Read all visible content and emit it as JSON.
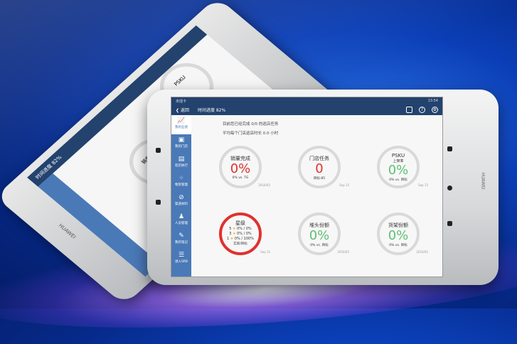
{
  "status_bar": {
    "carrier": "未插卡",
    "time": "13:54"
  },
  "header": {
    "back_label": "返回",
    "progress_label": "时间进度 82%"
  },
  "sidebar": {
    "items": [
      {
        "label": "我的业绩",
        "icon": "chart-icon",
        "active": true
      },
      {
        "label": "我的门店",
        "icon": "store-icon"
      },
      {
        "label": "巡店执行",
        "icon": "clipboard-icon"
      },
      {
        "label": "物资管理",
        "icon": "grid-icon"
      },
      {
        "label": "渠道材料",
        "icon": "clip-icon"
      },
      {
        "label": "人员管理",
        "icon": "people-icon"
      },
      {
        "label": "我的笔记",
        "icon": "note-icon"
      },
      {
        "label": "进入SRB",
        "icon": "enter-icon"
      }
    ]
  },
  "summary": {
    "line1": "目前您已经完成 0/0 的巡店任务",
    "line2": "平均每个门店巡店时长 0.0 小时"
  },
  "cards": [
    {
      "title": "销量完成",
      "value": "0%",
      "footer": "0% vs. TG",
      "date": "2016/02",
      "color": "#e0312f"
    },
    {
      "title": "门店任务",
      "value": "0",
      "footer": "目标:85",
      "date": "Sep 15",
      "color": "#e0312f"
    },
    {
      "title": "PSKU",
      "subtitle": "上架率",
      "value": "0%",
      "footer": "0% vs. 目标",
      "date": "Sep 15",
      "color": "#5cc174"
    },
    {
      "title": "星级",
      "rows": [
        {
          "n": "5",
          "v": "0% / 0%"
        },
        {
          "n": "3",
          "v": "0% / 0%"
        },
        {
          "n": "1",
          "v": "0% / 100%"
        }
      ],
      "footer": "实际/目标",
      "date": "Sep 15",
      "color": "#e0312f"
    },
    {
      "title": "堆头份额",
      "value": "0%",
      "footer": "0% vs. 目标",
      "date": "2016/02",
      "color": "#5cc174"
    },
    {
      "title": "货架份额",
      "value": "0%",
      "footer": "0% vs. 目标",
      "date": "2016/02",
      "color": "#5cc174"
    }
  ],
  "device": {
    "brand": "HUAWEI"
  },
  "colors": {
    "header": "#23426e",
    "sidebar": "#4a79b7",
    "red": "#e0312f",
    "green": "#5cc174"
  }
}
